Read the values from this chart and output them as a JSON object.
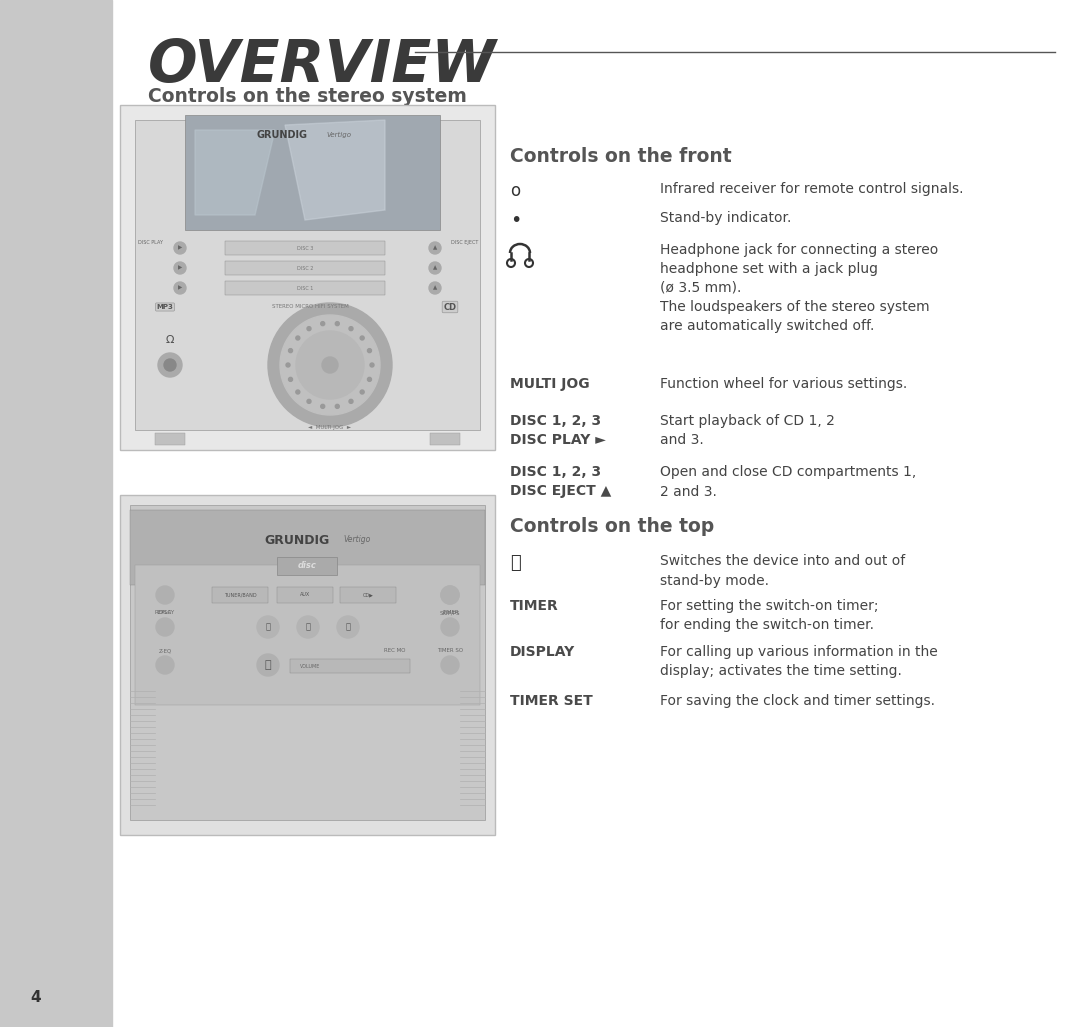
{
  "title": "OVERVIEW",
  "title_color": "#3a3a3a",
  "title_fontsize": 42,
  "sidebar_color": "#c8c8c8",
  "background_color": "#ffffff",
  "section_title_stereo": "Controls on the stereo system",
  "section_title_front": "Controls on the front",
  "section_title_top": "Controls on the top",
  "section_title_color": "#555555",
  "section_title_fontsize": 13.5,
  "bold_label_color": "#4a4a4a",
  "bold_label_fontsize": 10,
  "desc_color": "#444444",
  "desc_fontsize": 10,
  "page_number": "4",
  "line_color": "#555555",
  "img_border_color": "#bbbbbb",
  "img1_face": "#d8d8d8",
  "img2_face": "#d0d0d0",
  "screen_color": "#a0a8b0",
  "screen_shine": "#c0c8d0",
  "jog_outer": "#b0b0b0",
  "jog_mid": "#c4c4c4",
  "jog_inner": "#b8b8b8",
  "slot_color": "#c0c0c0",
  "btn_color": "#aaaaaa",
  "grundig_color": "#444444",
  "vertigo_color": "#666666",
  "top_panel_color": "#bcbcbc",
  "top_dark_color": "#a8a8a8"
}
